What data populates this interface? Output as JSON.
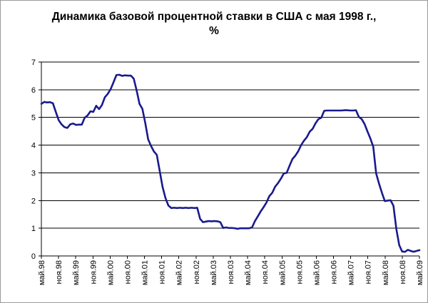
{
  "chart_data": {
    "type": "line",
    "title_line1": "Динамика базовой процентной ставки в США с мая 1998 г.,",
    "title_line2": "%",
    "xlabel": "",
    "ylabel": "",
    "ylim": [
      0,
      7
    ],
    "y_ticks": [
      "0",
      "1",
      "2",
      "3",
      "4",
      "5",
      "6",
      "7"
    ],
    "x_ticks": [
      "май.98",
      "ноя.98",
      "май.99",
      "ноя.99",
      "май.00",
      "ноя.00",
      "май.01",
      "ноя.01",
      "май.02",
      "ноя.02",
      "май.03",
      "ноя.03",
      "май.04",
      "ноя.04",
      "май.05",
      "ноя.05",
      "май.06",
      "ноя.06",
      "май.07",
      "ноя.07",
      "май.08",
      "ноя.08",
      "май.09"
    ],
    "grid": true,
    "legend": "none",
    "colors": {
      "line": "#1a1a8c",
      "grid": "#000000"
    },
    "series": [
      {
        "values": [
          5.49,
          5.56,
          5.54,
          5.55,
          5.51,
          5.2,
          4.9,
          4.75,
          4.65,
          4.62,
          4.75,
          4.78,
          4.73,
          4.74,
          4.74,
          4.99,
          5.07,
          5.22,
          5.2,
          5.42,
          5.3,
          5.45,
          5.73,
          5.85,
          6.02,
          6.27,
          6.53,
          6.54,
          6.5,
          6.52,
          6.51,
          6.51,
          6.4,
          5.98,
          5.49,
          5.31,
          4.8,
          4.21,
          3.97,
          3.77,
          3.65,
          3.07,
          2.49,
          2.09,
          1.82,
          1.73,
          1.74,
          1.73,
          1.74,
          1.73,
          1.74,
          1.73,
          1.74,
          1.73,
          1.74,
          1.34,
          1.22,
          1.24,
          1.26,
          1.25,
          1.26,
          1.25,
          1.22,
          1.01,
          1.03,
          1.01,
          1.01,
          1.0,
          0.98,
          1.0,
          1.0,
          1.0,
          1.0,
          1.03,
          1.26,
          1.43,
          1.61,
          1.76,
          1.93,
          2.16,
          2.28,
          2.5,
          2.63,
          2.79,
          2.98,
          3.0,
          3.26,
          3.5,
          3.62,
          3.78,
          4.0,
          4.16,
          4.29,
          4.49,
          4.59,
          4.79,
          4.94,
          4.99,
          5.24,
          5.25,
          5.25,
          5.25,
          5.25,
          5.25,
          5.25,
          5.26,
          5.26,
          5.25,
          5.25,
          5.26,
          5.02,
          4.94,
          4.76,
          4.49,
          4.24,
          3.94,
          2.98,
          2.61,
          2.28,
          1.98,
          2.0,
          2.01,
          1.81,
          0.97,
          0.39,
          0.16,
          0.15,
          0.22,
          0.18,
          0.15,
          0.18,
          0.21
        ]
      }
    ]
  }
}
